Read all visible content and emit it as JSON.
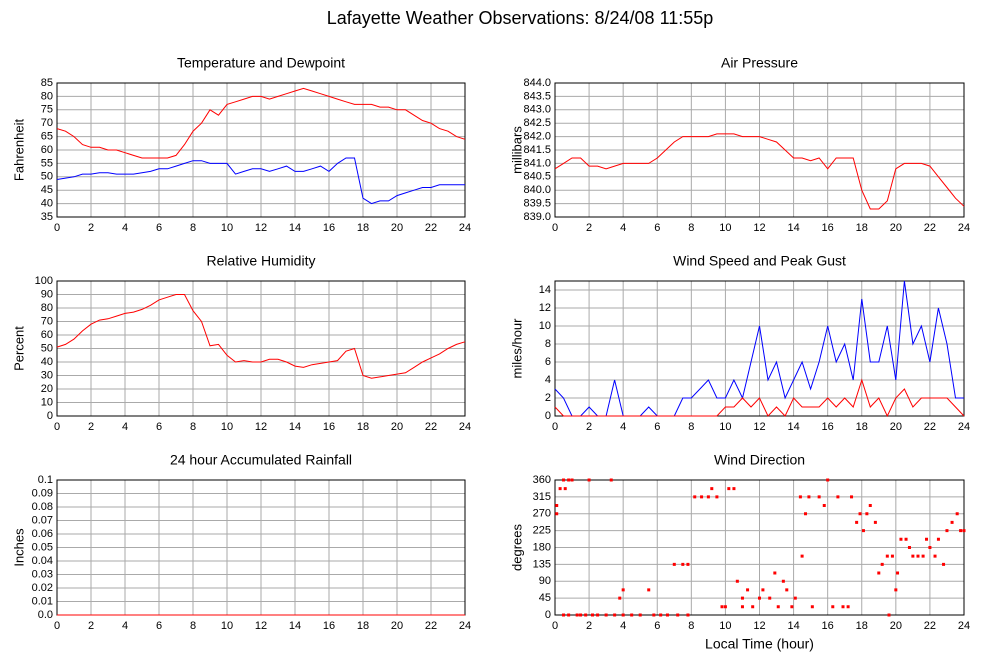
{
  "title": "Lafayette Weather Observations: 8/24/08 11:55p",
  "chart_data": [
    {
      "type": "line",
      "title": "Temperature and Dewpoint",
      "ylabel": "Fahrenheit",
      "grid": true,
      "x": [
        0,
        0.5,
        1,
        1.5,
        2,
        2.5,
        3,
        3.5,
        4,
        4.5,
        5,
        5.5,
        6,
        6.5,
        7,
        7.5,
        8,
        8.5,
        9,
        9.5,
        10,
        10.5,
        11,
        11.5,
        12,
        12.5,
        13,
        13.5,
        14,
        14.5,
        15,
        15.5,
        16,
        16.5,
        17,
        17.5,
        18,
        18.5,
        19,
        19.5,
        20,
        20.5,
        21,
        21.5,
        22,
        22.5,
        23,
        23.5,
        24
      ],
      "series": [
        {
          "color": "#ff0000",
          "values": [
            68,
            67,
            65,
            62,
            61,
            61,
            60,
            60,
            59,
            58,
            57,
            57,
            57,
            57,
            58,
            62,
            67,
            70,
            75,
            73,
            77,
            78,
            79,
            80,
            80,
            79,
            80,
            81,
            82,
            83,
            82,
            81,
            80,
            79,
            78,
            77,
            77,
            77,
            76,
            76,
            75,
            75,
            73,
            71,
            70,
            68,
            67,
            65,
            64
          ]
        },
        {
          "color": "#0000ff",
          "values": [
            49,
            49.5,
            50,
            51,
            51,
            51.5,
            51.5,
            51,
            51,
            51,
            51.5,
            52,
            53,
            53,
            54,
            55,
            56,
            56,
            55,
            55,
            55,
            51,
            52,
            53,
            53,
            52,
            53,
            54,
            52,
            52,
            53,
            54,
            52,
            55,
            57,
            57,
            42,
            40,
            41,
            41,
            43,
            44,
            45,
            46,
            46,
            47,
            47,
            47,
            47
          ]
        }
      ],
      "xlim": [
        0,
        24
      ],
      "xticks": [
        0,
        2,
        4,
        6,
        8,
        10,
        12,
        14,
        16,
        18,
        20,
        22,
        24
      ],
      "ylim": [
        35,
        85
      ],
      "yticks": [
        35,
        40,
        45,
        50,
        55,
        60,
        65,
        70,
        75,
        80,
        85
      ]
    },
    {
      "type": "line",
      "title": "Air Pressure",
      "ylabel": "millibars",
      "grid": true,
      "x": [
        0,
        0.5,
        1,
        1.5,
        2,
        2.5,
        3,
        3.5,
        4,
        4.5,
        5,
        5.5,
        6,
        6.5,
        7,
        7.5,
        8,
        8.5,
        9,
        9.5,
        10,
        10.5,
        11,
        11.5,
        12,
        12.5,
        13,
        13.5,
        14,
        14.5,
        15,
        15.5,
        16,
        16.5,
        17,
        17.5,
        18,
        18.5,
        19,
        19.5,
        20,
        20.5,
        21,
        21.5,
        22,
        22.5,
        23,
        23.5,
        24
      ],
      "series": [
        {
          "color": "#ff0000",
          "values": [
            840.8,
            841.0,
            841.2,
            841.2,
            840.9,
            840.9,
            840.8,
            840.9,
            841.0,
            841.0,
            841.0,
            841.0,
            841.2,
            841.5,
            841.8,
            842.0,
            842.0,
            842.0,
            842.0,
            842.1,
            842.1,
            842.1,
            842.0,
            842.0,
            842.0,
            841.9,
            841.8,
            841.5,
            841.2,
            841.2,
            841.1,
            841.2,
            840.8,
            841.2,
            841.2,
            841.2,
            840.0,
            839.3,
            839.3,
            839.6,
            840.8,
            841.0,
            841.0,
            841.0,
            840.9,
            840.5,
            840.1,
            839.7,
            839.4
          ]
        }
      ],
      "xlim": [
        0,
        24
      ],
      "xticks": [
        0,
        2,
        4,
        6,
        8,
        10,
        12,
        14,
        16,
        18,
        20,
        22,
        24
      ],
      "ylim": [
        839,
        844
      ],
      "yticks": [
        {
          "value": 839,
          "label": "839.0"
        },
        839.5,
        {
          "value": 840,
          "label": "840.0"
        },
        840.5,
        {
          "value": 841,
          "label": "841.0"
        },
        841.5,
        {
          "value": 842,
          "label": "842.0"
        },
        842.5,
        {
          "value": 843,
          "label": "843.0"
        },
        843.5,
        {
          "value": 844,
          "label": "844.0"
        }
      ]
    },
    {
      "type": "line",
      "title": "Relative Humidity",
      "ylabel": "Percent",
      "grid": true,
      "x": [
        0,
        0.5,
        1,
        1.5,
        2,
        2.5,
        3,
        3.5,
        4,
        4.5,
        5,
        5.5,
        6,
        6.5,
        7,
        7.5,
        8,
        8.5,
        9,
        9.5,
        10,
        10.5,
        11,
        11.5,
        12,
        12.5,
        13,
        13.5,
        14,
        14.5,
        15,
        15.5,
        16,
        16.5,
        17,
        17.5,
        18,
        18.5,
        19,
        19.5,
        20,
        20.5,
        21,
        21.5,
        22,
        22.5,
        23,
        23.5,
        24
      ],
      "series": [
        {
          "color": "#ff0000",
          "values": [
            51,
            53,
            57,
            63,
            68,
            71,
            72,
            74,
            76,
            77,
            79,
            82,
            86,
            88,
            90,
            90,
            78,
            70,
            52,
            53,
            45,
            40,
            41,
            40,
            40,
            42,
            42,
            40,
            37,
            36,
            38,
            39,
            40,
            41,
            48,
            50,
            30,
            28,
            29,
            30,
            31,
            32,
            36,
            40,
            43,
            46,
            50,
            53,
            55
          ]
        }
      ],
      "xlim": [
        0,
        24
      ],
      "xticks": [
        0,
        2,
        4,
        6,
        8,
        10,
        12,
        14,
        16,
        18,
        20,
        22,
        24
      ],
      "ylim": [
        0,
        100
      ],
      "yticks": [
        0,
        10,
        20,
        30,
        40,
        50,
        60,
        70,
        80,
        90,
        100
      ]
    },
    {
      "type": "line",
      "title": "Wind Speed and Peak Gust",
      "ylabel": "miles/hour",
      "grid": true,
      "x": [
        0,
        0.5,
        1,
        1.5,
        2,
        2.5,
        3,
        3.5,
        4,
        4.5,
        5,
        5.5,
        6,
        6.5,
        7,
        7.5,
        8,
        8.5,
        9,
        9.5,
        10,
        10.5,
        11,
        11.5,
        12,
        12.5,
        13,
        13.5,
        14,
        14.5,
        15,
        15.5,
        16,
        16.5,
        17,
        17.5,
        18,
        18.5,
        19,
        19.5,
        20,
        20.5,
        21,
        21.5,
        22,
        22.5,
        23,
        23.5,
        24
      ],
      "series": [
        {
          "color": "#0000ff",
          "values": [
            3,
            2,
            0,
            0,
            1,
            0,
            0,
            4,
            0,
            0,
            0,
            1,
            0,
            0,
            0,
            2,
            2,
            3,
            4,
            2,
            2,
            4,
            2,
            6,
            10,
            4,
            6,
            2,
            4,
            6,
            3,
            6,
            10,
            6,
            8,
            4,
            13,
            6,
            6,
            10,
            4,
            15,
            8,
            10,
            6,
            12,
            8,
            2,
            2
          ]
        },
        {
          "color": "#ff0000",
          "values": [
            1,
            0,
            0,
            0,
            0,
            0,
            0,
            0,
            0,
            0,
            0,
            0,
            0,
            0,
            0,
            0,
            0,
            0,
            0,
            0,
            1,
            1,
            2,
            1,
            2,
            0,
            1,
            0,
            2,
            1,
            1,
            1,
            2,
            1,
            2,
            1,
            4,
            1,
            2,
            0,
            2,
            3,
            1,
            2,
            2,
            2,
            2,
            1,
            0
          ]
        }
      ],
      "xlim": [
        0,
        24
      ],
      "xticks": [
        0,
        2,
        4,
        6,
        8,
        10,
        12,
        14,
        16,
        18,
        20,
        22,
        24
      ],
      "ylim": [
        0,
        15
      ],
      "yticks": [
        0,
        2,
        4,
        6,
        8,
        10,
        12,
        14
      ]
    },
    {
      "type": "line",
      "title": "24 hour Accumulated Rainfall",
      "ylabel": "Inches",
      "grid": true,
      "x": [
        0,
        24
      ],
      "series": [
        {
          "color": "#ff0000",
          "values": [
            0,
            0
          ]
        }
      ],
      "xlim": [
        0,
        24
      ],
      "xticks": [
        0,
        2,
        4,
        6,
        8,
        10,
        12,
        14,
        16,
        18,
        20,
        22,
        24
      ],
      "ylim": [
        0,
        0.1
      ],
      "yticks": [
        {
          "value": 0,
          "label": "0.0"
        },
        0.01,
        0.02,
        0.03,
        0.04,
        0.05,
        0.06,
        0.07,
        0.08,
        0.09,
        0.1
      ]
    },
    {
      "type": "scatter",
      "title": "Wind Direction",
      "ylabel": "degrees",
      "xlabel": "Local Time (hour)",
      "grid": true,
      "color": "#ff0000",
      "x": [
        0.1,
        0.1,
        0.3,
        0.5,
        0.6,
        0.8,
        1,
        1.3,
        0.5,
        0.8,
        1.5,
        1.8,
        2,
        2.2,
        2.5,
        3,
        3.3,
        3.5,
        3.8,
        4,
        4,
        4.5,
        5,
        5.5,
        5.8,
        6.2,
        6.6,
        7,
        7.2,
        7.5,
        7.8,
        7.8,
        8.2,
        8.6,
        9,
        9.2,
        9.5,
        9.8,
        10,
        10.2,
        10.5,
        10.7,
        11,
        11,
        11.3,
        11.6,
        12,
        12.2,
        12.6,
        12.9,
        13.1,
        13.4,
        13.6,
        13.9,
        14.1,
        14.4,
        14.5,
        14.7,
        14.9,
        15.1,
        15.5,
        15.8,
        16,
        16.3,
        16.6,
        16.9,
        17.2,
        17.4,
        17.7,
        17.9,
        18.1,
        18.3,
        18.5,
        18.8,
        19,
        19.2,
        19.5,
        19.6,
        19.8,
        20,
        20.1,
        20.3,
        20.6,
        20.8,
        21,
        21.3,
        21.6,
        21.8,
        22,
        22.3,
        22.5,
        22.8,
        23,
        23.3,
        23.6,
        23.8,
        24
      ],
      "y": [
        270,
        292,
        337,
        360,
        337,
        360,
        360,
        0,
        0,
        0,
        0,
        0,
        360,
        0,
        0,
        0,
        360,
        0,
        45,
        67,
        0,
        0,
        0,
        67,
        0,
        0,
        0,
        135,
        0,
        135,
        135,
        0,
        315,
        315,
        315,
        337,
        315,
        22,
        22,
        337,
        337,
        90,
        22,
        45,
        67,
        22,
        45,
        67,
        45,
        112,
        22,
        90,
        67,
        22,
        45,
        315,
        157,
        270,
        315,
        22,
        315,
        292,
        360,
        22,
        315,
        22,
        22,
        315,
        247,
        270,
        225,
        270,
        292,
        247,
        112,
        135,
        157,
        0,
        157,
        67,
        112,
        202,
        202,
        180,
        157,
        157,
        157,
        202,
        180,
        157,
        202,
        135,
        225,
        247,
        270,
        225,
        225
      ],
      "xlim": [
        0,
        24
      ],
      "xticks": [
        0,
        2,
        4,
        6,
        8,
        10,
        12,
        14,
        16,
        18,
        20,
        22,
        24
      ],
      "ylim": [
        0,
        360
      ],
      "yticks": [
        0,
        45,
        90,
        135,
        180,
        225,
        270,
        315,
        360
      ]
    }
  ]
}
